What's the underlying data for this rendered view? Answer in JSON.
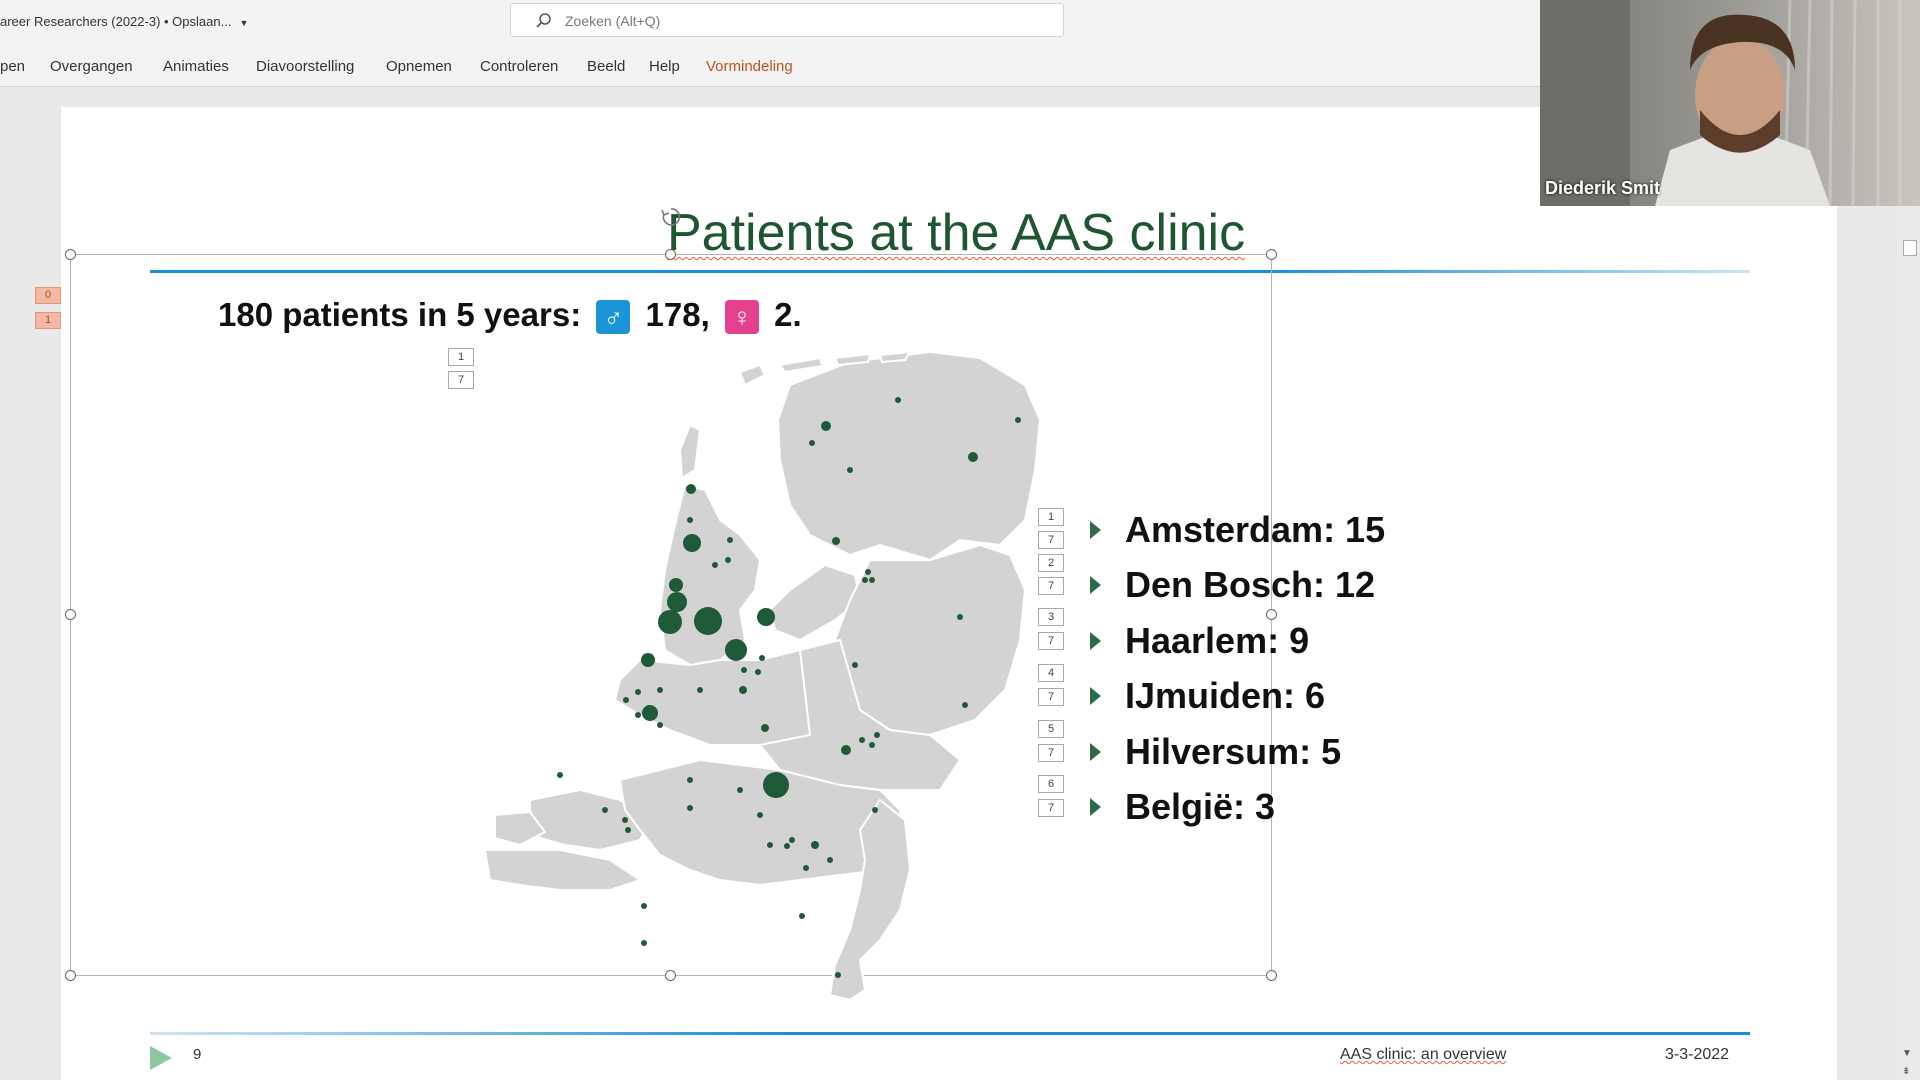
{
  "titlebar": {
    "document_title": "areer Researchers (2022-3) • Opslaan...",
    "search_placeholder": "Zoeken (Alt+Q)"
  },
  "ribbon": {
    "tabs": [
      {
        "label": "pen"
      },
      {
        "label": "Overgangen"
      },
      {
        "label": "Animaties"
      },
      {
        "label": "Diavoorstelling"
      },
      {
        "label": "Opnemen"
      },
      {
        "label": "Controleren"
      },
      {
        "label": "Beeld"
      },
      {
        "label": "Help"
      },
      {
        "label": "Vormindeling",
        "active": true
      }
    ]
  },
  "outline_markers": [
    "0",
    "1"
  ],
  "slide": {
    "title": "Patients at the AAS clinic",
    "subtitle_lead": "180 patients in 5 years:",
    "male_symbol": "♂",
    "male_count": "178,",
    "female_symbol": "♀",
    "female_count": "2.",
    "animation_tags_top": [
      "1",
      "7"
    ],
    "list": [
      {
        "label": "Amsterdam: 15",
        "tags": [
          "1",
          "7"
        ]
      },
      {
        "label": "Den Bosch: 12",
        "tags": [
          "2",
          "7"
        ]
      },
      {
        "label": "Haarlem: 9",
        "tags": [
          "3",
          "7"
        ]
      },
      {
        "label": "IJmuiden: 6",
        "tags": [
          "4",
          "7"
        ]
      },
      {
        "label": "Hilversum: 5",
        "tags": [
          "5",
          "7"
        ]
      },
      {
        "label": "België: 3",
        "tags": [
          "6",
          "7"
        ]
      }
    ],
    "footer": {
      "slide_number": "9",
      "text": "AAS clinic: an overview",
      "date": "3-3-2022"
    }
  },
  "webcam": {
    "participant_name": "Diederik Smit"
  },
  "colors": {
    "accent_ribbon": "#c0541f",
    "title_green": "#1e5632",
    "rule_blue": "#1a8fd6",
    "male_badge": "#1a96d8",
    "female_badge": "#e5418f",
    "map_dot": "#1f5a38"
  }
}
